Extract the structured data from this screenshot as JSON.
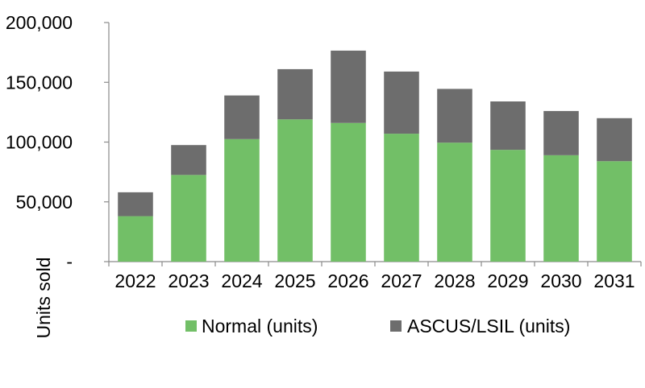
{
  "chart_data": {
    "type": "bar",
    "stacked": true,
    "categories": [
      "2022",
      "2023",
      "2024",
      "2025",
      "2026",
      "2027",
      "2028",
      "2029",
      "2030",
      "2031"
    ],
    "series": [
      {
        "name": "Normal (units)",
        "color": "#72bf67",
        "values": [
          38000,
          72500,
          102500,
          119000,
          116000,
          107000,
          99500,
          93500,
          89000,
          84000
        ]
      },
      {
        "name": "ASCUS/LSIL (units)",
        "color": "#6d6d6d",
        "values": [
          20000,
          25000,
          36500,
          42000,
          60500,
          52000,
          45000,
          40500,
          37000,
          36000
        ]
      }
    ],
    "ylabel": "Units sold",
    "ylim": [
      0,
      200000
    ],
    "y_ticks": [
      {
        "value": 0,
        "label": "-"
      },
      {
        "value": 50000,
        "label": "50,000"
      },
      {
        "value": 100000,
        "label": "100,000"
      },
      {
        "value": 150000,
        "label": "150,000"
      },
      {
        "value": 200000,
        "label": "200,000"
      }
    ],
    "grid": false,
    "legend_position": "bottom"
  }
}
